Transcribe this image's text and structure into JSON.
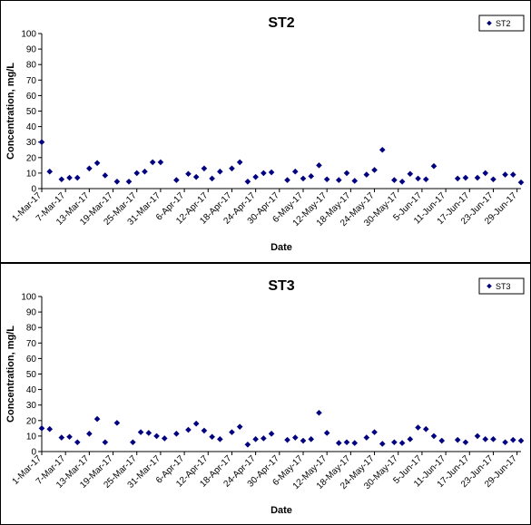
{
  "chart_data": [
    {
      "type": "scatter",
      "title": "ST2",
      "xlabel": "Date",
      "ylabel": "Concentration, mg/L",
      "ylim": [
        0,
        100
      ],
      "yticks": [
        0,
        10,
        20,
        30,
        40,
        50,
        60,
        70,
        80,
        90,
        100
      ],
      "xlim": [
        "2017-03-01",
        "2017-06-30"
      ],
      "xtick_labels": [
        "1-Mar-17",
        "7-Mar-17",
        "13-Mar-17",
        "19-Mar-17",
        "25-Mar-17",
        "31-Mar-17",
        "6-Apr-17",
        "12-Apr-17",
        "18-Apr-17",
        "24-Apr-17",
        "30-Apr-17",
        "6-May-17",
        "12-May-17",
        "18-May-17",
        "24-May-17",
        "30-May-17",
        "5-Jun-17",
        "11-Jun-17",
        "17-Jun-17",
        "23-Jun-17",
        "29-Jun-17"
      ],
      "grid": false,
      "legend_position": "top-right",
      "marker": "diamond",
      "color": "#000080",
      "series": [
        {
          "name": "ST2",
          "x": [
            "2017-03-01",
            "2017-03-03",
            "2017-03-06",
            "2017-03-08",
            "2017-03-10",
            "2017-03-13",
            "2017-03-15",
            "2017-03-17",
            "2017-03-20",
            "2017-03-23",
            "2017-03-25",
            "2017-03-27",
            "2017-03-29",
            "2017-03-31",
            "2017-04-04",
            "2017-04-07",
            "2017-04-09",
            "2017-04-11",
            "2017-04-13",
            "2017-04-15",
            "2017-04-18",
            "2017-04-20",
            "2017-04-22",
            "2017-04-24",
            "2017-04-26",
            "2017-04-28",
            "2017-05-02",
            "2017-05-04",
            "2017-05-06",
            "2017-05-08",
            "2017-05-10",
            "2017-05-12",
            "2017-05-15",
            "2017-05-17",
            "2017-05-19",
            "2017-05-22",
            "2017-05-24",
            "2017-05-26",
            "2017-05-29",
            "2017-05-31",
            "2017-06-02",
            "2017-06-04",
            "2017-06-06",
            "2017-06-08",
            "2017-06-14",
            "2017-06-16",
            "2017-06-19",
            "2017-06-21",
            "2017-06-23",
            "2017-06-26",
            "2017-06-28",
            "2017-06-30"
          ],
          "y": [
            30,
            11,
            6,
            7,
            7,
            13,
            16.5,
            8.5,
            4.5,
            4.5,
            10,
            11,
            17,
            17,
            5.5,
            9.5,
            7.5,
            13,
            6.5,
            11,
            13,
            17,
            4.5,
            7.5,
            10,
            10.5,
            5.5,
            11,
            6.5,
            8,
            15,
            6,
            5.5,
            10,
            5,
            9,
            12,
            25,
            5.5,
            4.5,
            9.5,
            6.5,
            6,
            14.5,
            6.5,
            7,
            7,
            10,
            6,
            9,
            9,
            4
          ]
        }
      ]
    },
    {
      "type": "scatter",
      "title": "ST3",
      "xlabel": "Date",
      "ylabel": "Concentration, mg/L",
      "ylim": [
        0,
        100
      ],
      "yticks": [
        0,
        10,
        20,
        30,
        40,
        50,
        60,
        70,
        80,
        90,
        100
      ],
      "xlim": [
        "2017-03-01",
        "2017-06-30"
      ],
      "xtick_labels": [
        "1-Mar-17",
        "7-Mar-17",
        "13-Mar-17",
        "19-Mar-17",
        "25-Mar-17",
        "31-Mar-17",
        "6-Apr-17",
        "12-Apr-17",
        "18-Apr-17",
        "24-Apr-17",
        "30-Apr-17",
        "6-May-17",
        "12-May-17",
        "18-May-17",
        "24-May-17",
        "30-May-17",
        "5-Jun-17",
        "11-Jun-17",
        "17-Jun-17",
        "23-Jun-17",
        "29-Jun-17"
      ],
      "grid": false,
      "legend_position": "top-right",
      "marker": "diamond",
      "color": "#000080",
      "series": [
        {
          "name": "ST3",
          "x": [
            "2017-03-01",
            "2017-03-03",
            "2017-03-06",
            "2017-03-08",
            "2017-03-10",
            "2017-03-13",
            "2017-03-15",
            "2017-03-17",
            "2017-03-20",
            "2017-03-24",
            "2017-03-26",
            "2017-03-28",
            "2017-03-30",
            "2017-04-01",
            "2017-04-04",
            "2017-04-07",
            "2017-04-09",
            "2017-04-11",
            "2017-04-13",
            "2017-04-15",
            "2017-04-18",
            "2017-04-20",
            "2017-04-22",
            "2017-04-24",
            "2017-04-26",
            "2017-04-28",
            "2017-05-02",
            "2017-05-04",
            "2017-05-06",
            "2017-05-08",
            "2017-05-10",
            "2017-05-12",
            "2017-05-15",
            "2017-05-17",
            "2017-05-19",
            "2017-05-22",
            "2017-05-24",
            "2017-05-26",
            "2017-05-29",
            "2017-05-31",
            "2017-06-02",
            "2017-06-04",
            "2017-06-06",
            "2017-06-08",
            "2017-06-10",
            "2017-06-14",
            "2017-06-16",
            "2017-06-19",
            "2017-06-21",
            "2017-06-23",
            "2017-06-26",
            "2017-06-28",
            "2017-06-30"
          ],
          "y": [
            15,
            14.5,
            9,
            9.5,
            6,
            11.5,
            21,
            6,
            18.5,
            6,
            12.5,
            12,
            10,
            8.5,
            11.5,
            14,
            18,
            13.5,
            9.5,
            8,
            12.5,
            16,
            4.5,
            8,
            8.5,
            11.5,
            7.5,
            9,
            7,
            8,
            25,
            12,
            5.5,
            6,
            5.5,
            9,
            12.5,
            5,
            6,
            5.5,
            8,
            15.5,
            14.5,
            10,
            7,
            7.5,
            6,
            10,
            8,
            8,
            6,
            7.5,
            7
          ]
        }
      ]
    }
  ]
}
